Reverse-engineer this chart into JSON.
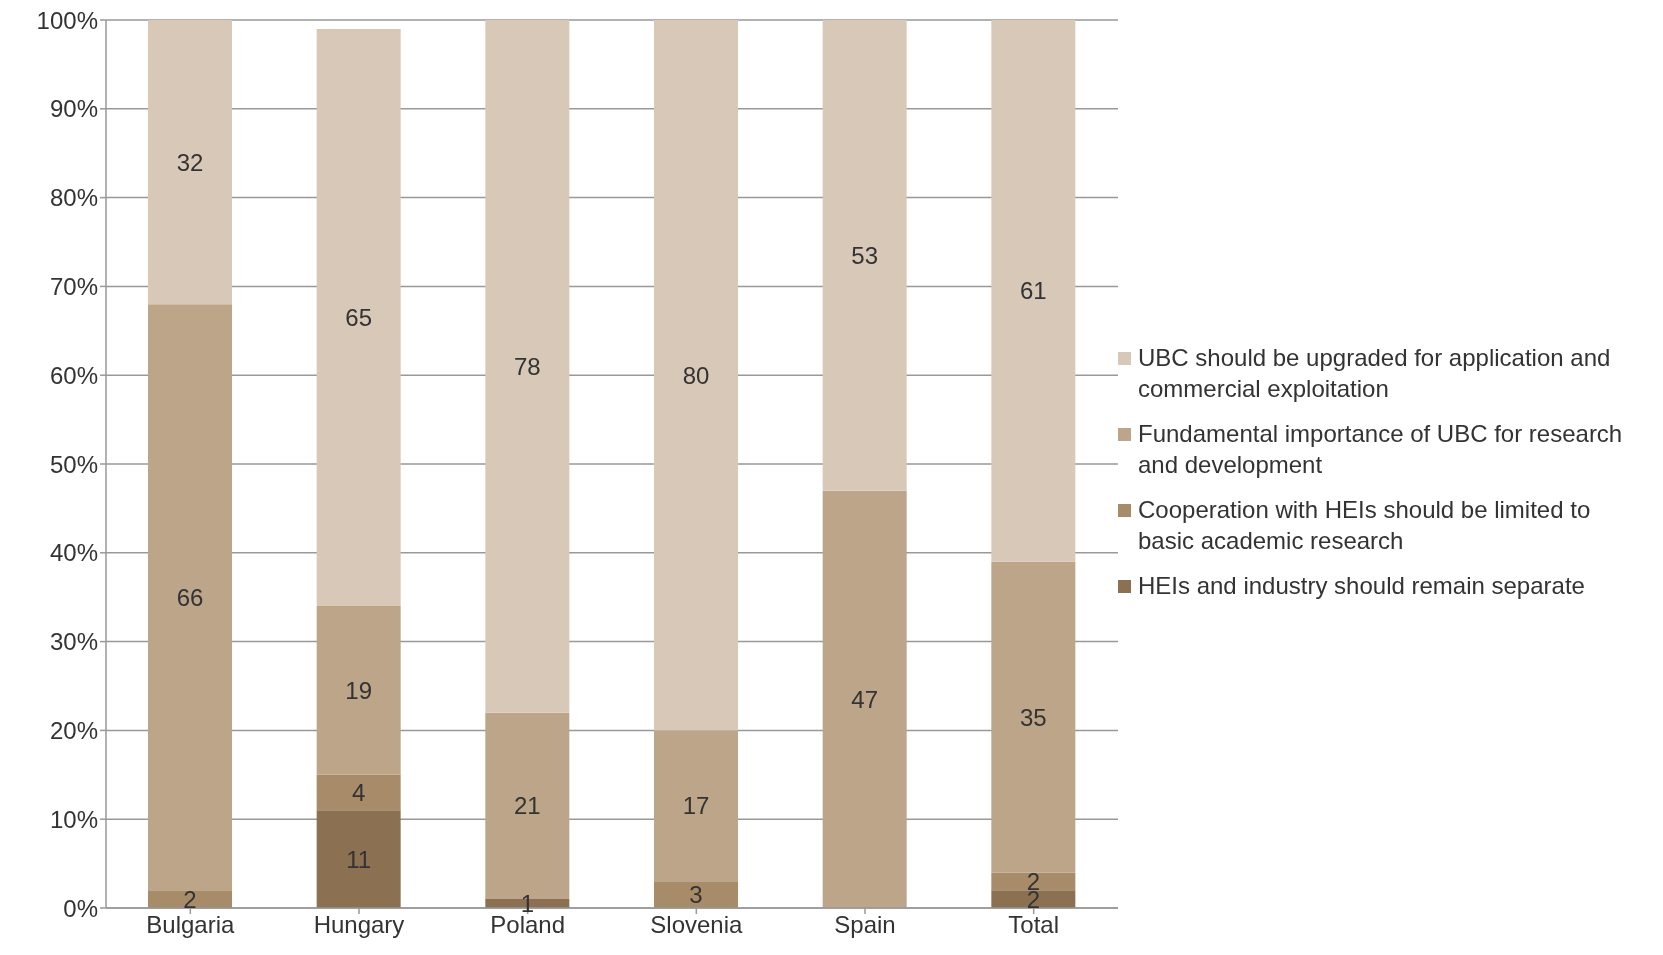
{
  "chart_data": {
    "type": "bar",
    "stacked": true,
    "categories": [
      "Bulgaria",
      "Hungary",
      "Poland",
      "Slovenia",
      "Spain",
      "Total"
    ],
    "series": [
      {
        "name": "HEIs and industry should remain separate",
        "color": "#8b7152",
        "values": [
          null,
          11,
          1,
          null,
          null,
          2
        ]
      },
      {
        "name": "Cooperation with HEIs should be limited to basic academic research",
        "color": "#a88b68",
        "values": [
          2,
          4,
          null,
          3,
          null,
          2
        ]
      },
      {
        "name": "Fundamental importance of UBC for research and development",
        "color": "#bca588",
        "values": [
          66,
          19,
          21,
          17,
          47,
          35
        ]
      },
      {
        "name": "UBC should be upgraded for application and commercial exploitation",
        "color": "#d8c8b8",
        "values": [
          32,
          65,
          78,
          80,
          53,
          61
        ]
      }
    ],
    "ylim": [
      0,
      100
    ],
    "yticks": [
      {
        "value": 0,
        "label": "0%"
      },
      {
        "value": 10,
        "label": "10%"
      },
      {
        "value": 20,
        "label": "20%"
      },
      {
        "value": 30,
        "label": "30%"
      },
      {
        "value": 40,
        "label": "40%"
      },
      {
        "value": 50,
        "label": "50%"
      },
      {
        "value": 60,
        "label": "60%"
      },
      {
        "value": 70,
        "label": "70%"
      },
      {
        "value": 80,
        "label": "80%"
      },
      {
        "value": 90,
        "label": "90%"
      },
      {
        "value": 100,
        "label": "100%"
      }
    ],
    "grid": "y",
    "legend": "right",
    "data_labels": true
  }
}
